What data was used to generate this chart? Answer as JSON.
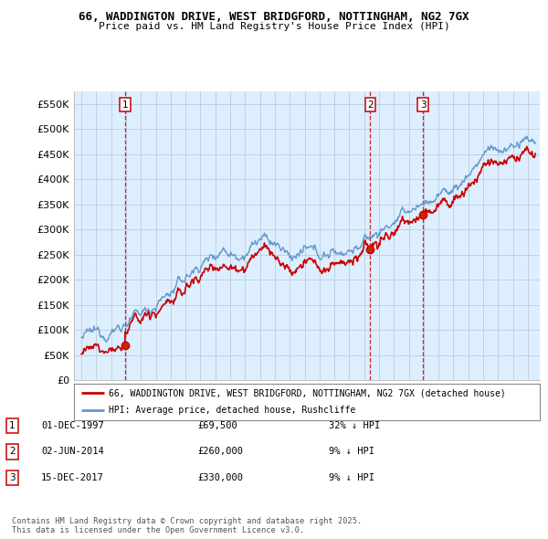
{
  "title_line1": "66, WADDINGTON DRIVE, WEST BRIDGFORD, NOTTINGHAM, NG2 7GX",
  "title_line2": "Price paid vs. HM Land Registry's House Price Index (HPI)",
  "xlim_start": 1994.5,
  "xlim_end": 2025.8,
  "ylim_min": 0,
  "ylim_max": 575000,
  "yticks": [
    0,
    50000,
    100000,
    150000,
    200000,
    250000,
    300000,
    350000,
    400000,
    450000,
    500000,
    550000
  ],
  "ytick_labels": [
    "£0",
    "£50K",
    "£100K",
    "£150K",
    "£200K",
    "£250K",
    "£300K",
    "£350K",
    "£400K",
    "£450K",
    "£500K",
    "£550K"
  ],
  "sale_date_nums": [
    1997.917,
    2014.415,
    2017.956
  ],
  "sale_prices": [
    69500,
    260000,
    330000
  ],
  "sale_labels": [
    "1",
    "2",
    "3"
  ],
  "vline_color": "#cc0000",
  "sale_marker_color": "#cc0000",
  "hpi_line_color": "#6699cc",
  "price_line_color": "#cc0000",
  "chart_bg_color": "#ddeeff",
  "legend_line1": "66, WADDINGTON DRIVE, WEST BRIDGFORD, NOTTINGHAM, NG2 7GX (detached house)",
  "legend_line2": "HPI: Average price, detached house, Rushcliffe",
  "table_data": [
    [
      "1",
      "01-DEC-1997",
      "£69,500",
      "32% ↓ HPI"
    ],
    [
      "2",
      "02-JUN-2014",
      "£260,000",
      "9% ↓ HPI"
    ],
    [
      "3",
      "15-DEC-2017",
      "£330,000",
      "9% ↓ HPI"
    ]
  ],
  "footnote": "Contains HM Land Registry data © Crown copyright and database right 2025.\nThis data is licensed under the Open Government Licence v3.0.",
  "background_color": "#ffffff",
  "grid_color": "#bbccdd"
}
